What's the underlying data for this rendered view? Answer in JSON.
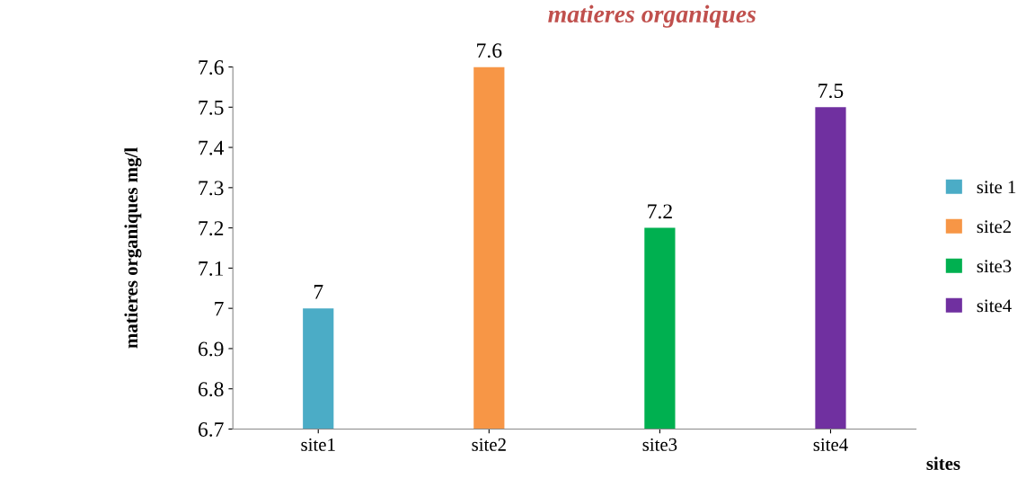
{
  "chart_data": {
    "type": "bar",
    "title": "matieres organiques",
    "xlabel": "sites",
    "ylabel": "matieres organiques mg/l",
    "categories": [
      "site1",
      "site2",
      "site3",
      "site4"
    ],
    "series": [
      {
        "name": "site 1",
        "color": "#4bacc6",
        "values": [
          7,
          null,
          null,
          null
        ]
      },
      {
        "name": "site2",
        "color": "#f79646",
        "values": [
          null,
          7.6,
          null,
          null
        ]
      },
      {
        "name": "site3",
        "color": "#00b050",
        "values": [
          null,
          null,
          7.2,
          null
        ]
      },
      {
        "name": "site4",
        "color": "#7030a0",
        "values": [
          null,
          null,
          null,
          7.5
        ]
      }
    ],
    "ylim": [
      6.7,
      7.6
    ],
    "yticks": [
      6.7,
      6.8,
      6.9,
      7,
      7.1,
      7.2,
      7.3,
      7.4,
      7.5,
      7.6
    ],
    "data_labels": true,
    "legend": "right",
    "grid": false
  }
}
